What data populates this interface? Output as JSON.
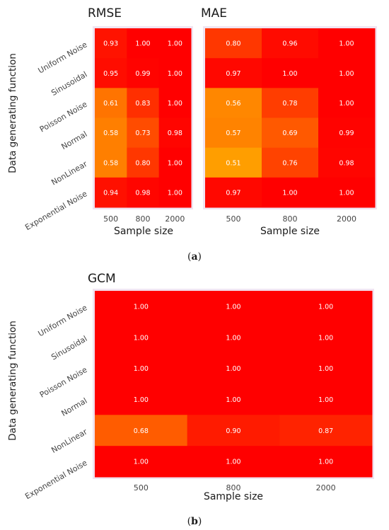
{
  "chart_data": [
    {
      "type": "heatmap",
      "title": "RMSE",
      "xlabel": "Sample size",
      "ylabel": "Data generating function",
      "categories_x": [
        "500",
        "800",
        "2000"
      ],
      "categories_y": [
        "Uniform Noise",
        "Sinusoidal",
        "Poisson Noise",
        "Normal",
        "NonLinear",
        "Exponential Noise"
      ],
      "values": [
        [
          0.93,
          1.0,
          1.0
        ],
        [
          0.95,
          0.99,
          1.0
        ],
        [
          0.61,
          0.83,
          1.0
        ],
        [
          0.58,
          0.73,
          0.98
        ],
        [
          0.58,
          0.8,
          1.0
        ],
        [
          0.94,
          0.98,
          1.0
        ]
      ],
      "labels": [
        [
          "0.93",
          "1.00",
          "1.00"
        ],
        [
          "0.95",
          "0.99",
          "1.00"
        ],
        [
          "0.61",
          "0.83",
          "1.00"
        ],
        [
          "0.58",
          "0.73",
          "0.98"
        ],
        [
          "0.58",
          "0.80",
          "1.00"
        ],
        [
          "0.94",
          "0.98",
          "1.00"
        ]
      ],
      "colors": {
        "low": "#FFA500",
        "high": "#FF0000"
      }
    },
    {
      "type": "heatmap",
      "title": "MAE",
      "xlabel": "Sample size",
      "ylabel": "",
      "categories_x": [
        "500",
        "800",
        "2000"
      ],
      "categories_y": [
        "Uniform Noise",
        "Sinusoidal",
        "Poisson Noise",
        "Normal",
        "NonLinear",
        "Exponential Noise"
      ],
      "values": [
        [
          0.8,
          0.96,
          1.0
        ],
        [
          0.97,
          1.0,
          1.0
        ],
        [
          0.56,
          0.78,
          1.0
        ],
        [
          0.57,
          0.69,
          0.99
        ],
        [
          0.51,
          0.76,
          0.98
        ],
        [
          0.97,
          1.0,
          1.0
        ]
      ],
      "labels": [
        [
          "0.80",
          "0.96",
          "1.00"
        ],
        [
          "0.97",
          "1.00",
          "1.00"
        ],
        [
          "0.56",
          "0.78",
          "1.00"
        ],
        [
          "0.57",
          "0.69",
          "0.99"
        ],
        [
          "0.51",
          "0.76",
          "0.98"
        ],
        [
          "0.97",
          "1.00",
          "1.00"
        ]
      ],
      "colors": {
        "low": "#FFA500",
        "high": "#FF0000"
      }
    },
    {
      "type": "heatmap",
      "title": "GCM",
      "xlabel": "Sample size",
      "ylabel": "Data generating function",
      "categories_x": [
        "500",
        "800",
        "2000"
      ],
      "categories_y": [
        "Uniform Noise",
        "Sinusoidal",
        "Poisson Noise",
        "Normal",
        "NonLinear",
        "Exponential Noise"
      ],
      "values": [
        [
          1.0,
          1.0,
          1.0
        ],
        [
          1.0,
          1.0,
          1.0
        ],
        [
          1.0,
          1.0,
          1.0
        ],
        [
          1.0,
          1.0,
          1.0
        ],
        [
          0.68,
          0.9,
          0.87
        ],
        [
          1.0,
          1.0,
          1.0
        ]
      ],
      "labels": [
        [
          "1.00",
          "1.00",
          "1.00"
        ],
        [
          "1.00",
          "1.00",
          "1.00"
        ],
        [
          "1.00",
          "1.00",
          "1.00"
        ],
        [
          "1.00",
          "1.00",
          "1.00"
        ],
        [
          "0.68",
          "0.90",
          "0.87"
        ],
        [
          "1.00",
          "1.00",
          "1.00"
        ]
      ],
      "colors": {
        "low": "#FFA500",
        "high": "#FF0000"
      }
    }
  ],
  "captions": {
    "a": "a",
    "b": "b"
  }
}
